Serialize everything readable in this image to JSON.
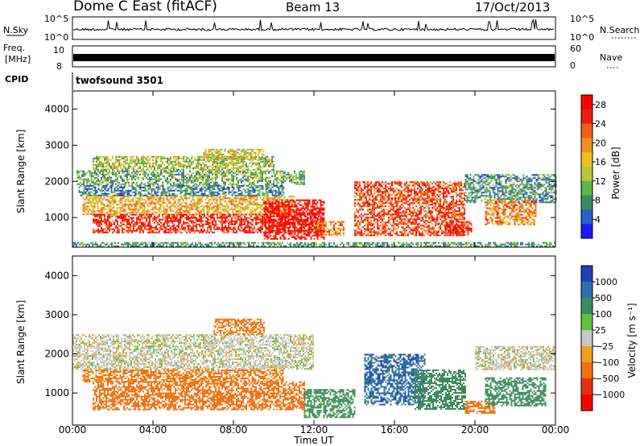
{
  "header": {
    "radar": "Dome C East (fitACF)",
    "beam": "Beam 13",
    "date": "17/Oct/2013"
  },
  "top_panels": {
    "nsky": {
      "label": "N.Sky",
      "tick_high": "10^5",
      "tick_low": "10^0",
      "range_high": 100000,
      "range_low": 1
    },
    "nsearch": {
      "label": "N.Search",
      "tick_high": "10^5",
      "tick_low": "10^0"
    },
    "freq": {
      "label": "Freq.",
      "unit": "[MHz]",
      "tick_high": "10",
      "tick_low": "8",
      "range": [
        8,
        10
      ]
    },
    "nave": {
      "label": "Nave",
      "tick_high": "60",
      "tick_low": "0",
      "range": [
        0,
        60
      ]
    },
    "cpid": {
      "label": "CPID",
      "value": "twofsound 3501"
    }
  },
  "chart_data": [
    {
      "type": "heatmap",
      "name": "power",
      "ylabel": "Slant Range [km]",
      "xlabel": "Time UT",
      "xlim": [
        0,
        24
      ],
      "ylim": [
        180,
        4500
      ],
      "x_ticks": [
        0,
        4,
        8,
        12,
        16,
        20,
        24
      ],
      "x_tick_labels": [
        "00:00",
        "04:00",
        "08:00",
        "12:00",
        "16:00",
        "20:00",
        "00:00"
      ],
      "y_ticks": [
        1000,
        2000,
        3000,
        4000
      ],
      "y_tick_labels": [
        "1000",
        "2000",
        "3000",
        "4000"
      ],
      "colorbar": {
        "label": "Power [dB]",
        "tick_values": [
          4,
          8,
          12,
          16,
          20,
          24,
          28
        ],
        "tick_labels": [
          "4",
          "8",
          "12",
          "16",
          "20",
          "24",
          "28"
        ],
        "range": [
          0,
          30
        ],
        "colors": [
          "#1a1aff",
          "#2a60c8",
          "#3d8a5a",
          "#55b848",
          "#b8c838",
          "#f0c020",
          "#f09020",
          "#f06018",
          "#e82010",
          "#ff0000"
        ]
      },
      "regions": [
        {
          "t0": 0.2,
          "t1": 11.5,
          "r0": 1900,
          "r1": 2300,
          "value": 10
        },
        {
          "t0": 0.3,
          "t1": 10.5,
          "r0": 1600,
          "r1": 1900,
          "value": 7
        },
        {
          "t0": 1.0,
          "t1": 10.0,
          "r0": 2300,
          "r1": 2700,
          "value": 13
        },
        {
          "t0": 6.5,
          "t1": 9.5,
          "r0": 2600,
          "r1": 2900,
          "value": 15
        },
        {
          "t0": 0.5,
          "t1": 11.0,
          "r0": 1100,
          "r1": 1600,
          "value": 18
        },
        {
          "t0": 1.0,
          "t1": 12.5,
          "r0": 600,
          "r1": 1100,
          "value": 26
        },
        {
          "t0": 9.5,
          "t1": 12.5,
          "r0": 400,
          "r1": 1500,
          "value": 29
        },
        {
          "t0": 12.0,
          "t1": 13.5,
          "r0": 500,
          "r1": 900,
          "value": 20
        },
        {
          "t0": 14.0,
          "t1": 19.5,
          "r0": 500,
          "r1": 2000,
          "value": 24
        },
        {
          "t0": 18.5,
          "t1": 19.8,
          "r0": 500,
          "r1": 900,
          "value": 28
        },
        {
          "t0": 19.5,
          "t1": 24.0,
          "r0": 1400,
          "r1": 2200,
          "value": 8
        },
        {
          "t0": 20.5,
          "t1": 23.0,
          "r0": 800,
          "r1": 1500,
          "value": 20
        },
        {
          "t0": 0.0,
          "t1": 24.0,
          "r0": 200,
          "r1": 320,
          "value": 9
        }
      ]
    },
    {
      "type": "heatmap",
      "name": "velocity",
      "ylabel": "Slant Range [km]",
      "xlabel": "Time UT",
      "xlim": [
        0,
        24
      ],
      "ylim": [
        180,
        4500
      ],
      "x_ticks": [
        0,
        4,
        8,
        12,
        16,
        20,
        24
      ],
      "x_tick_labels": [
        "00:00",
        "04:00",
        "08:00",
        "12:00",
        "16:00",
        "20:00",
        "00:00"
      ],
      "y_ticks": [
        1000,
        2000,
        3000,
        4000
      ],
      "y_tick_labels": [
        "1000",
        "2000",
        "3000",
        "4000"
      ],
      "colorbar": {
        "label": "Velocity [m s⁻¹]",
        "tick_labels": [
          "1000",
          "500",
          "100",
          "25",
          "−25",
          "−100",
          "−500",
          "−1000"
        ],
        "colors": [
          "#2040b8",
          "#2f6fb0",
          "#3d8a5a",
          "#60c040",
          "#c8c8c8",
          "#f0a020",
          "#f07010",
          "#e83010",
          "#ff0000"
        ]
      },
      "regions": [
        {
          "t0": 0.0,
          "t1": 12.0,
          "r0": 1600,
          "r1": 2500,
          "value": 0
        },
        {
          "t0": 0.5,
          "t1": 10.5,
          "r0": 1300,
          "r1": 1600,
          "value": -150
        },
        {
          "t0": 1.0,
          "t1": 11.5,
          "r0": 600,
          "r1": 1300,
          "value": -300
        },
        {
          "t0": 7.0,
          "t1": 9.5,
          "r0": 2500,
          "r1": 2900,
          "value": -150
        },
        {
          "t0": 11.5,
          "t1": 14.0,
          "r0": 400,
          "r1": 1100,
          "value": 200
        },
        {
          "t0": 14.5,
          "t1": 17.5,
          "r0": 700,
          "r1": 2000,
          "value": 800
        },
        {
          "t0": 17.0,
          "t1": 19.5,
          "r0": 600,
          "r1": 1600,
          "value": 300
        },
        {
          "t0": 19.5,
          "t1": 21.0,
          "r0": 500,
          "r1": 800,
          "value": -300
        },
        {
          "t0": 20.0,
          "t1": 24.0,
          "r0": 1600,
          "r1": 2200,
          "value": 0
        },
        {
          "t0": 20.5,
          "t1": 23.5,
          "r0": 700,
          "r1": 1400,
          "value": 300
        }
      ]
    }
  ]
}
